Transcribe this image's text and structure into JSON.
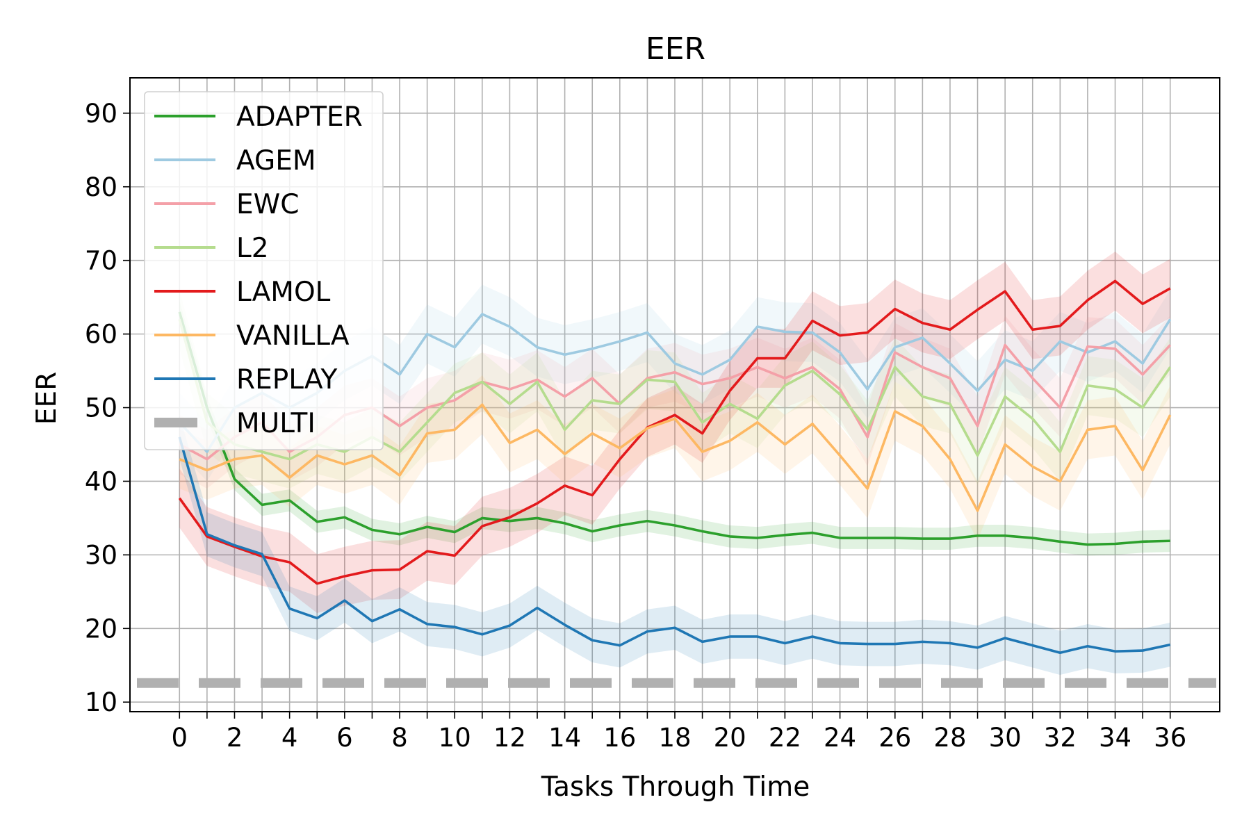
{
  "chart_data": {
    "type": "line",
    "title": "EER",
    "xlabel": "Tasks Through Time",
    "ylabel": "EER",
    "xlim": [
      -1.8,
      37.8
    ],
    "ylim": [
      8.7,
      94.8
    ],
    "xticks": [
      0,
      2,
      4,
      6,
      8,
      10,
      12,
      14,
      16,
      18,
      20,
      22,
      24,
      26,
      28,
      30,
      32,
      34,
      36
    ],
    "yticks": [
      10,
      20,
      30,
      40,
      50,
      60,
      70,
      80,
      90
    ],
    "x_tick_labels": [
      "0",
      "2",
      "4",
      "6",
      "8",
      "10",
      "12",
      "14",
      "16",
      "18",
      "20",
      "22",
      "24",
      "26",
      "28",
      "30",
      "32",
      "34",
      "36"
    ],
    "y_tick_labels": [
      "10",
      "20",
      "30",
      "40",
      "50",
      "60",
      "70",
      "80",
      "90"
    ],
    "grid": true,
    "legend_position": "top-left",
    "x": [
      0,
      1,
      2,
      3,
      4,
      5,
      6,
      7,
      8,
      9,
      10,
      11,
      12,
      13,
      14,
      15,
      16,
      17,
      18,
      19,
      20,
      21,
      22,
      23,
      24,
      25,
      26,
      27,
      28,
      29,
      30,
      31,
      32,
      33,
      34,
      35,
      36
    ],
    "series": [
      {
        "name": "ADAPTER",
        "color": "#2ca02c",
        "opacity": 1.0,
        "band": 1.5,
        "values": [
          63,
          50,
          40.3,
          36.8,
          37.4,
          34.5,
          35.1,
          33.4,
          32.8,
          33.8,
          33.1,
          35.0,
          34.6,
          35.0,
          34.3,
          33.2,
          34.0,
          34.6,
          34.0,
          33.2,
          32.5,
          32.3,
          32.7,
          33.0,
          32.3,
          32.3,
          32.3,
          32.2,
          32.2,
          32.6,
          32.6,
          32.3,
          31.8,
          31.4,
          31.5,
          31.8,
          31.9
        ]
      },
      {
        "name": "AGEM",
        "color": "#9ecae1",
        "opacity": 1.0,
        "band": 4,
        "values": [
          48,
          44,
          50,
          52,
          50,
          52,
          55,
          57,
          54.5,
          60,
          58.2,
          62.7,
          61.0,
          58.2,
          57.2,
          58.0,
          59.0,
          60.2,
          56.0,
          54.5,
          56.5,
          61.0,
          60.3,
          60.2,
          57.5,
          52.5,
          58.2,
          59.5,
          56.0,
          52.3,
          56.5,
          55.0,
          59.0,
          57.5,
          59.0,
          56.0,
          62.0
        ]
      },
      {
        "name": "EWC",
        "color": "#f4a0a8",
        "opacity": 1.0,
        "band": 4,
        "values": [
          45,
          43,
          46,
          48,
          44,
          46,
          49,
          50,
          47.5,
          50,
          51,
          53.5,
          52.5,
          53.8,
          51.5,
          54.0,
          50.5,
          54.0,
          54.8,
          53.2,
          54.0,
          55.5,
          54.0,
          55.5,
          52.5,
          46.0,
          57.5,
          55.5,
          54.0,
          47.5,
          58.5,
          54.0,
          50.0,
          58.3,
          58.0,
          54.5,
          58.5
        ]
      },
      {
        "name": "L2",
        "color": "#b5dc8e",
        "opacity": 1.0,
        "band": 4,
        "values": [
          62,
          48,
          45,
          44,
          43,
          45,
          44,
          46,
          44,
          48,
          52,
          53.5,
          50.5,
          53.5,
          47.0,
          51.0,
          50.5,
          53.8,
          53.5,
          48.0,
          50.5,
          48.5,
          53.0,
          55.0,
          51.8,
          47.0,
          55.5,
          51.5,
          50.5,
          43.5,
          51.5,
          48.5,
          44.0,
          53.0,
          52.5,
          50.0,
          55.5
        ]
      },
      {
        "name": "LAMOL",
        "color": "#e31a1c",
        "opacity": 1.0,
        "band": 4,
        "values": [
          37.7,
          32.5,
          31.1,
          29.8,
          29.0,
          26.1,
          27.1,
          27.9,
          28.0,
          30.5,
          29.9,
          33.9,
          35.1,
          37.0,
          39.4,
          38.1,
          43.0,
          47.3,
          49.0,
          46.5,
          52.3,
          56.7,
          56.7,
          61.8,
          59.8,
          60.2,
          63.4,
          61.5,
          60.6,
          63.3,
          65.8,
          60.6,
          61.1,
          64.6,
          67.2,
          64.1,
          66.2
        ]
      },
      {
        "name": "VANILLA",
        "color": "#fdb863",
        "opacity": 1.0,
        "band": 4,
        "values": [
          43,
          41.5,
          43,
          43.5,
          40.5,
          43.5,
          42.3,
          43.5,
          40.8,
          46.5,
          47.0,
          50.4,
          45.2,
          47.0,
          43.7,
          46.5,
          44.5,
          47.2,
          48.5,
          44.0,
          45.5,
          48.0,
          45.0,
          47.8,
          43.5,
          39.0,
          49.5,
          47.5,
          43.0,
          36.0,
          45.0,
          42.0,
          40.0,
          47.0,
          47.5,
          41.5,
          49.0
        ]
      },
      {
        "name": "REPLAY",
        "color": "#1f77b4",
        "opacity": 1.0,
        "band": 3,
        "values": [
          46.0,
          32.8,
          31.3,
          30.1,
          22.7,
          21.4,
          23.8,
          21.0,
          22.6,
          20.6,
          20.2,
          19.2,
          20.4,
          22.8,
          20.5,
          18.4,
          17.7,
          19.6,
          20.1,
          18.2,
          18.9,
          18.9,
          18.0,
          18.9,
          18.0,
          17.9,
          17.9,
          18.2,
          18.0,
          17.4,
          18.7,
          17.7,
          16.7,
          17.6,
          16.9,
          17.0,
          17.8
        ]
      }
    ],
    "baseline": {
      "name": "MULTI",
      "value": 12.6,
      "color": "#b0b0b0",
      "style": "dashed"
    }
  }
}
